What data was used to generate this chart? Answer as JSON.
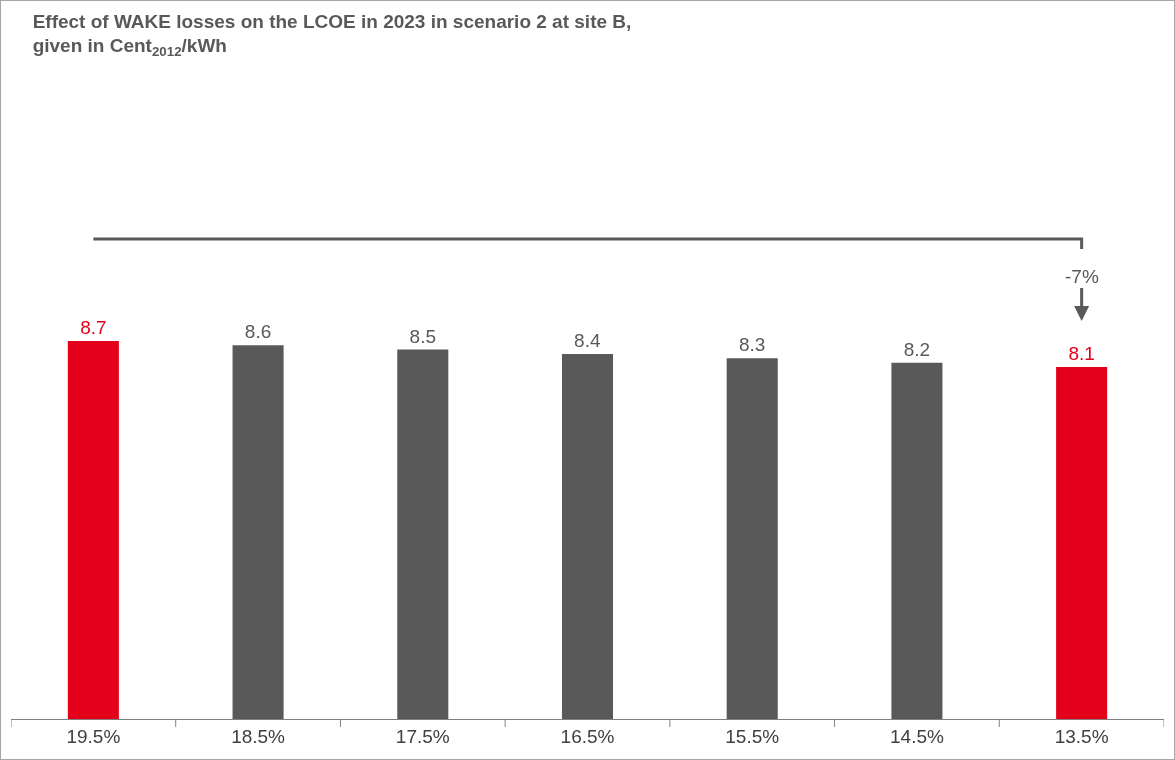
{
  "chart_data": {
    "type": "bar",
    "title": "Effect of WAKE losses on the LCOE in 2023 in scenario 2 at site B,\ngiven in Cent$_{2012}$/kWh",
    "categories": [
      "19.5%",
      "18.5%",
      "17.5%",
      "16.5%",
      "15.5%",
      "14.5%",
      "13.5%"
    ],
    "values": [
      8.7,
      8.6,
      8.5,
      8.4,
      8.3,
      8.2,
      8.1
    ],
    "colors": [
      "#e2001a",
      "#595959",
      "#595959",
      "#595959",
      "#595959",
      "#595959",
      "#e2001a"
    ],
    "data_labels": true,
    "tick_labels": "x",
    "annotations": [
      "-7%"
    ]
  }
}
